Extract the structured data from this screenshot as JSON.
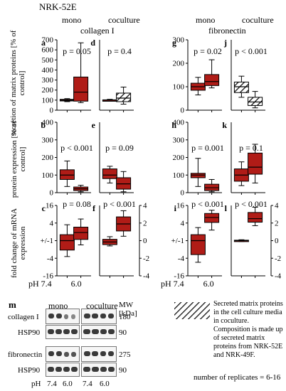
{
  "figure": {
    "cell_line": "NRK-52E",
    "col_headers": [
      "mono",
      "coculture",
      "mono",
      "coculture"
    ],
    "protein_headers": [
      "collagen I",
      "fibronectin"
    ],
    "row_ylabels": [
      "secretion of matrix proteins [% of control]",
      "protein expression [% of control]",
      "fold change of mRNA expression"
    ],
    "x_axis_prefix": "pH",
    "x_ticks": [
      "7.4",
      "6.0"
    ],
    "colors": {
      "box_fill": "#b01c17",
      "box_edge": "#000000",
      "hatch": "#000000"
    }
  },
  "chart_data": [
    {
      "panel": "a",
      "type": "box",
      "row": "secretion",
      "protein": "collagen I",
      "culture": "mono",
      "yticks": [
        "0",
        "100",
        "200",
        "300",
        "400",
        "500",
        "600",
        "700"
      ],
      "ylim": [
        0,
        700
      ],
      "scale": "linear",
      "p_label": "p = 0.05",
      "categories": [
        "7.4",
        "6.0"
      ],
      "boxes": [
        {
          "x": "7.4",
          "min": 85,
          "q1": 92,
          "median": 100,
          "q3": 108,
          "max": 115,
          "style": "solid"
        },
        {
          "x": "6.0",
          "min": 75,
          "q1": 90,
          "median": 180,
          "q3": 330,
          "max": 670,
          "style": "solid"
        }
      ]
    },
    {
      "panel": "d",
      "type": "box",
      "row": "secretion",
      "protein": "collagen I",
      "culture": "coculture",
      "yticks": [],
      "ylim": [
        0,
        700
      ],
      "scale": "linear",
      "p_label": "p = 0.4",
      "categories": [
        "7.4",
        "6.0"
      ],
      "boxes": [
        {
          "x": "7.4",
          "min": 95,
          "q1": 98,
          "median": 100,
          "q3": 103,
          "max": 108,
          "style": "solid"
        },
        {
          "x": "6.0",
          "min": 60,
          "q1": 85,
          "median": 120,
          "q3": 170,
          "max": 230,
          "style": "hatched"
        }
      ]
    },
    {
      "panel": "g",
      "type": "box",
      "row": "secretion",
      "protein": "fibronectin",
      "culture": "mono",
      "yticks": [
        "0",
        "100",
        "200",
        "300"
      ],
      "ylim": [
        0,
        300
      ],
      "scale": "linear",
      "p_label": "p = 0.02",
      "categories": [
        "7.4",
        "6.0"
      ],
      "boxes": [
        {
          "x": "7.4",
          "min": 65,
          "q1": 85,
          "median": 100,
          "q3": 115,
          "max": 140,
          "style": "solid"
        },
        {
          "x": "6.0",
          "min": 95,
          "q1": 105,
          "median": 122,
          "q3": 152,
          "max": 215,
          "style": "solid"
        }
      ]
    },
    {
      "panel": "j",
      "type": "box",
      "row": "secretion",
      "protein": "fibronectin",
      "culture": "coculture",
      "yticks": [],
      "ylim": [
        0,
        300
      ],
      "scale": "linear",
      "p_label": "p < 0.001",
      "categories": [
        "7.4",
        "6.0"
      ],
      "boxes": [
        {
          "x": "7.4",
          "min": 55,
          "q1": 75,
          "median": 100,
          "q3": 120,
          "max": 145,
          "style": "hatched"
        },
        {
          "x": "6.0",
          "min": 10,
          "q1": 20,
          "median": 35,
          "q3": 55,
          "max": 80,
          "style": "hatched"
        }
      ]
    },
    {
      "panel": "b",
      "type": "box",
      "row": "protein",
      "protein": "collagen I",
      "culture": "mono",
      "yticks": [
        "0",
        "100",
        "200",
        "300",
        "400"
      ],
      "ylim": [
        0,
        400
      ],
      "scale": "linear",
      "p_label": "p < 0.001",
      "categories": [
        "7.4",
        "6.0"
      ],
      "boxes": [
        {
          "x": "7.4",
          "min": 35,
          "q1": 75,
          "median": 100,
          "q3": 130,
          "max": 180,
          "style": "solid"
        },
        {
          "x": "6.0",
          "min": 5,
          "q1": 12,
          "median": 22,
          "q3": 32,
          "max": 42,
          "style": "solid"
        }
      ]
    },
    {
      "panel": "e",
      "type": "box",
      "row": "protein",
      "protein": "collagen I",
      "culture": "coculture",
      "yticks": [],
      "ylim": [
        0,
        400
      ],
      "scale": "linear",
      "p_label": "p = 0.09",
      "categories": [
        "7.4",
        "6.0"
      ],
      "boxes": [
        {
          "x": "7.4",
          "min": 55,
          "q1": 80,
          "median": 100,
          "q3": 135,
          "max": 150,
          "style": "solid"
        },
        {
          "x": "6.0",
          "min": 5,
          "q1": 20,
          "median": 50,
          "q3": 85,
          "max": 120,
          "style": "solid"
        }
      ]
    },
    {
      "panel": "h",
      "type": "box",
      "row": "protein",
      "protein": "fibronectin",
      "culture": "mono",
      "yticks": [
        "0",
        "100",
        "200",
        "300",
        "400"
      ],
      "ylim": [
        0,
        400
      ],
      "scale": "linear",
      "p_label": "p = 0.001",
      "categories": [
        "7.4",
        "6.0"
      ],
      "boxes": [
        {
          "x": "7.4",
          "min": 35,
          "q1": 85,
          "median": 100,
          "q3": 110,
          "max": 195,
          "style": "solid"
        },
        {
          "x": "6.0",
          "min": 5,
          "q1": 12,
          "median": 28,
          "q3": 48,
          "max": 75,
          "style": "solid"
        }
      ]
    },
    {
      "panel": "k",
      "type": "box",
      "row": "protein",
      "protein": "fibronectin",
      "culture": "coculture",
      "yticks": [],
      "ylim": [
        0,
        400
      ],
      "scale": "linear",
      "p_label": "p = 0.1",
      "categories": [
        "7.4",
        "6.0"
      ],
      "boxes": [
        {
          "x": "7.4",
          "min": 40,
          "q1": 65,
          "median": 100,
          "q3": 135,
          "max": 175,
          "style": "solid"
        },
        {
          "x": "6.0",
          "min": 55,
          "q1": 105,
          "median": 145,
          "q3": 225,
          "max": 275,
          "style": "solid"
        }
      ]
    },
    {
      "panel": "c",
      "type": "box",
      "row": "mrna",
      "protein": "collagen I",
      "culture": "mono",
      "yticks": [
        "-16",
        "-4",
        "+/-1",
        "4",
        "16"
      ],
      "ylim": [
        -16,
        16
      ],
      "scale": "log2 fold change",
      "p_label": "p = 0.08",
      "categories": [
        "7.4",
        "6.0"
      ],
      "boxes": [
        {
          "x": "7.4",
          "min": -3.5,
          "q1": -2.1,
          "median": -1,
          "q3": 1.6,
          "max": 3.5,
          "style": "solid"
        },
        {
          "x": "6.0",
          "min": -1.4,
          "q1": 1.1,
          "median": 1.9,
          "q3": 2.9,
          "max": 5.5,
          "style": "solid"
        }
      ]
    },
    {
      "panel": "f",
      "type": "box",
      "row": "mrna",
      "protein": "collagen I",
      "culture": "coculture",
      "yticks": [
        "-4",
        "-2",
        "0",
        "2",
        "4"
      ],
      "ylim": [
        -4,
        4
      ],
      "scale": "linear",
      "p_label": "p < 0.001",
      "categories": [
        "7.4",
        "6.0"
      ],
      "boxes": [
        {
          "x": "7.4",
          "min": -0.6,
          "q1": -0.45,
          "median": -0.15,
          "q3": 0.15,
          "max": 0.45,
          "style": "solid"
        },
        {
          "x": "6.0",
          "min": 0.5,
          "q1": 1.1,
          "median": 1.9,
          "q3": 2.7,
          "max": 3.4,
          "style": "solid"
        }
      ]
    },
    {
      "panel": "i",
      "type": "box",
      "row": "mrna",
      "protein": "fibronectin",
      "culture": "mono",
      "yticks": [
        "-16",
        "-4",
        "+/-1",
        "4",
        "16"
      ],
      "ylim": [
        -16,
        16
      ],
      "scale": "log2 fold change",
      "p_label": "p < 0.001",
      "categories": [
        "7.4",
        "6.0"
      ],
      "boxes": [
        {
          "x": "7.4",
          "min": -5.5,
          "q1": -3.0,
          "median": -1,
          "q3": 1.6,
          "max": 2.8,
          "style": "solid"
        },
        {
          "x": "6.0",
          "min": 2.3,
          "q1": 4.2,
          "median": 6.2,
          "q3": 8.5,
          "max": 11,
          "style": "solid"
        }
      ]
    },
    {
      "panel": "l",
      "type": "box",
      "row": "mrna",
      "protein": "fibronectin",
      "culture": "coculture",
      "yticks": [
        "-4",
        "-2",
        "0",
        "2",
        "4"
      ],
      "ylim": [
        -4,
        4
      ],
      "scale": "linear",
      "p_label": "p < 0.001",
      "categories": [
        "7.4",
        "6.0"
      ],
      "boxes": [
        {
          "x": "7.4",
          "min": -0.1,
          "q1": -0.05,
          "median": 0,
          "q3": 0.05,
          "max": 0.1,
          "style": "solid"
        },
        {
          "x": "6.0",
          "min": 1.7,
          "q1": 2.1,
          "median": 2.5,
          "q3": 3.2,
          "max": 3.8,
          "style": "solid"
        }
      ]
    }
  ],
  "blots": {
    "panel_label": "m",
    "headers": [
      "mono",
      "coculture"
    ],
    "mw_header": "MW\n[kDa]",
    "rows": [
      {
        "label": "collagen I",
        "mw": "180"
      },
      {
        "label": "HSP90",
        "mw": "90"
      },
      {
        "label": "fibronectin",
        "mw": "275"
      },
      {
        "label": "HSP90",
        "mw": "90"
      }
    ],
    "x_prefix": "pH",
    "x_ticks": [
      "7.4",
      "6.0",
      "7.4",
      "6.0"
    ]
  },
  "legend": {
    "text": "Secreted matrix proteins in the cell culture media in coculture. Composition is made up of secreted matrix proteins from NRK-52E and NRK-49F.",
    "replicates": "number of replicates = 6-16"
  }
}
